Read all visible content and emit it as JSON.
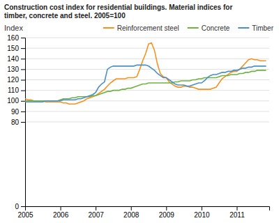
{
  "chart_data": {
    "type": "line",
    "title": "Construction cost index for residential buildings. Material indices for\ntimber, concrete and steel. 2005=100",
    "ylabel": "Index",
    "x": [
      2005.0,
      2005.083,
      2005.167,
      2005.25,
      2005.333,
      2005.417,
      2005.5,
      2005.583,
      2005.667,
      2005.75,
      2005.833,
      2005.917,
      2006.0,
      2006.083,
      2006.167,
      2006.25,
      2006.333,
      2006.417,
      2006.5,
      2006.583,
      2006.667,
      2006.75,
      2006.833,
      2006.917,
      2007.0,
      2007.083,
      2007.167,
      2007.25,
      2007.333,
      2007.417,
      2007.5,
      2007.583,
      2007.667,
      2007.75,
      2007.833,
      2007.917,
      2008.0,
      2008.083,
      2008.167,
      2008.25,
      2008.333,
      2008.417,
      2008.5,
      2008.583,
      2008.667,
      2008.75,
      2008.833,
      2008.917,
      2009.0,
      2009.083,
      2009.167,
      2009.25,
      2009.333,
      2009.417,
      2009.5,
      2009.583,
      2009.667,
      2009.75,
      2009.833,
      2009.917,
      2010.0,
      2010.083,
      2010.167,
      2010.25,
      2010.333,
      2010.417,
      2010.5,
      2010.583,
      2010.667,
      2010.75,
      2010.833,
      2010.917,
      2011.0,
      2011.083,
      2011.167,
      2011.25,
      2011.333,
      2011.417,
      2011.5,
      2011.583,
      2011.667,
      2011.75,
      2011.833
    ],
    "series": [
      {
        "name": "Reinforcement steel",
        "color": "#F5921E",
        "values": [
          102,
          101,
          101,
          100,
          100,
          100,
          100,
          99,
          99,
          99,
          99,
          99,
          99,
          98,
          98,
          97,
          97,
          97,
          98,
          99,
          100,
          102,
          103,
          104,
          105,
          107,
          109,
          111,
          114,
          117,
          119,
          121,
          121,
          121,
          121,
          122,
          122,
          122,
          123,
          130,
          138,
          145,
          154,
          155,
          148,
          135,
          126,
          123,
          122,
          118,
          116,
          114,
          113,
          113,
          114,
          114,
          113,
          113,
          112,
          111,
          111,
          111,
          111,
          111,
          112,
          113,
          117,
          121,
          123,
          125,
          127,
          128,
          128,
          130,
          133,
          136,
          139,
          140,
          139,
          139,
          138,
          138,
          138
        ]
      },
      {
        "name": "Concrete",
        "color": "#6DB33F",
        "values": [
          100,
          100,
          100,
          100,
          100,
          100,
          100,
          100,
          100,
          100,
          100,
          100,
          101,
          102,
          102,
          102,
          103,
          103,
          104,
          104,
          104,
          104,
          104,
          105,
          105,
          106,
          107,
          108,
          109,
          109,
          110,
          110,
          110,
          111,
          111,
          112,
          112,
          113,
          114,
          115,
          116,
          116,
          117,
          117,
          117,
          117,
          117,
          117,
          117,
          117,
          117,
          118,
          118,
          119,
          119,
          119,
          119,
          120,
          120,
          121,
          121,
          122,
          122,
          122,
          122,
          122,
          123,
          124,
          124,
          124,
          125,
          125,
          125,
          126,
          126,
          127,
          127,
          128,
          128,
          129,
          129,
          129,
          129
        ]
      },
      {
        "name": "Timber",
        "color": "#4A90C4",
        "values": [
          99,
          99,
          99,
          99,
          99,
          99,
          99,
          100,
          100,
          100,
          100,
          100,
          100,
          101,
          101,
          101,
          101,
          101,
          102,
          102,
          103,
          104,
          105,
          106,
          108,
          113,
          116,
          118,
          130,
          132,
          133,
          133,
          133,
          133,
          133,
          133,
          133,
          133,
          134,
          134,
          134,
          134,
          133,
          131,
          129,
          126,
          124,
          122,
          122,
          120,
          118,
          116,
          115,
          115,
          115,
          114,
          114,
          115,
          116,
          117,
          117,
          119,
          122,
          124,
          125,
          125,
          126,
          127,
          127,
          128,
          128,
          129,
          129,
          130,
          131,
          131,
          132,
          132,
          133,
          133,
          133,
          133,
          133
        ]
      }
    ],
    "xlim": [
      2005.0,
      2011.92
    ],
    "xticks": [
      2005,
      2006,
      2007,
      2008,
      2009,
      2010,
      2011
    ],
    "ylim": [
      0,
      160
    ],
    "yticks": [
      0,
      80,
      90,
      100,
      110,
      120,
      130,
      140,
      150,
      160
    ],
    "grid": true
  }
}
